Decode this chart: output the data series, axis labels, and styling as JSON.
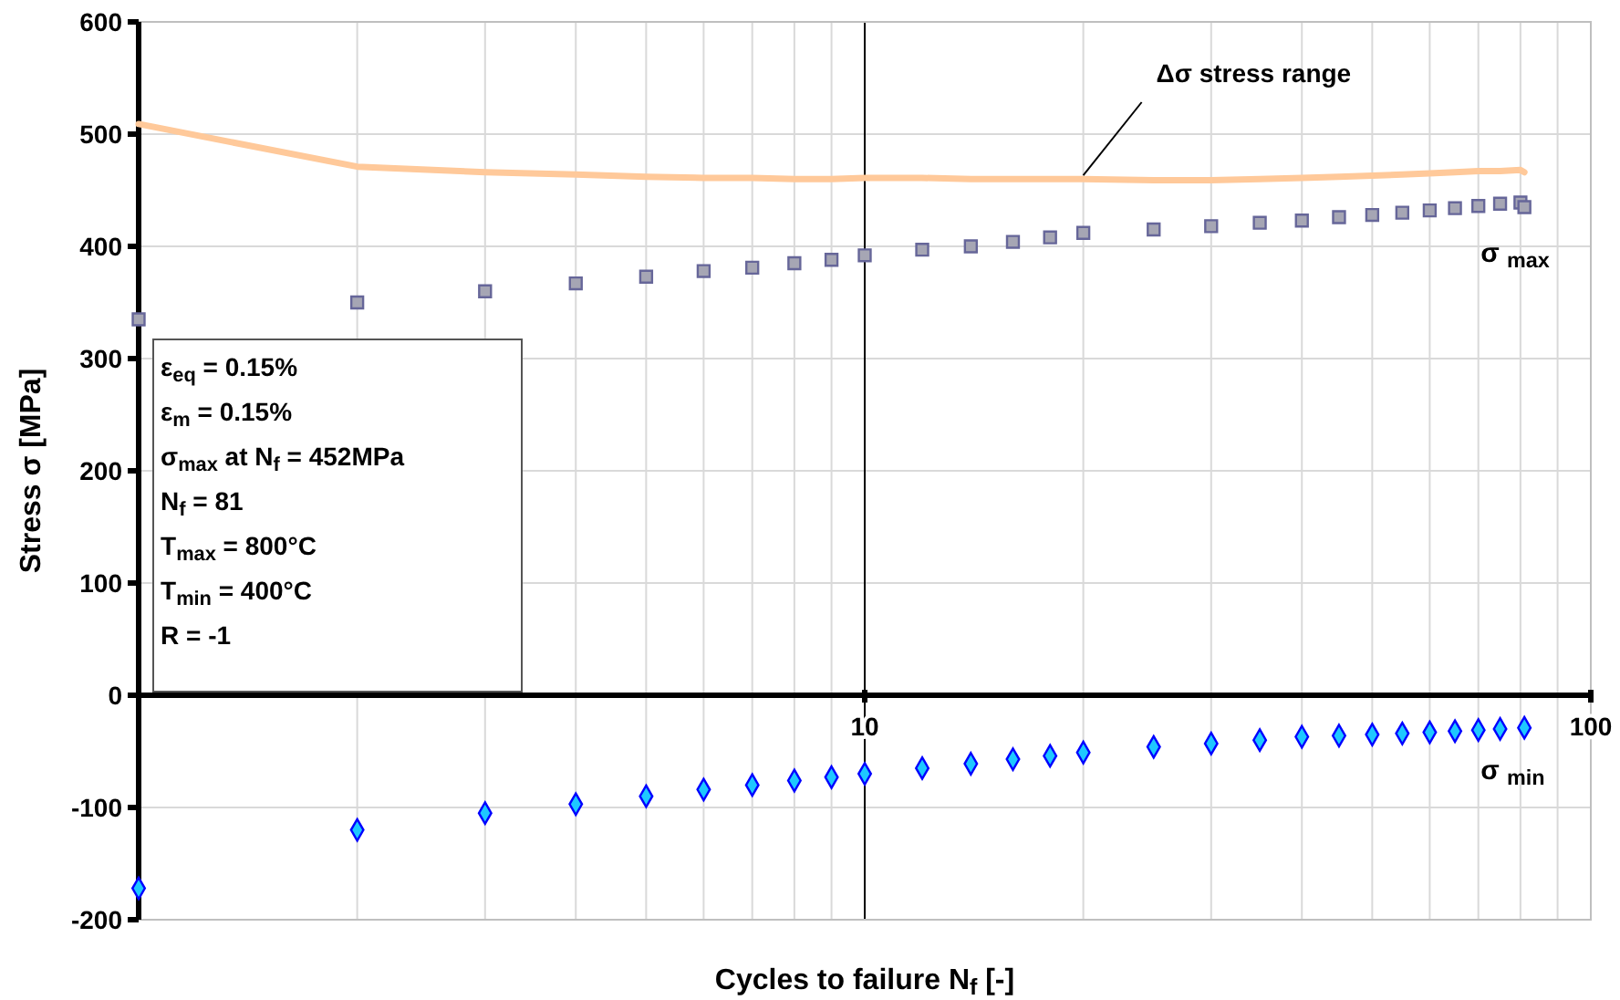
{
  "chart_data": {
    "type": "scatter",
    "xlabel": "Cycles to failure N$_{f}$ [-]",
    "ylabel": "Stress σ [MPa]",
    "log": "x",
    "grid": true,
    "legend": false,
    "xlim": [
      1,
      100
    ],
    "xticks": [
      10,
      100
    ],
    "ref_lines": [
      {
        "axis": "x",
        "value": 10,
        "color": "#000000"
      }
    ],
    "ylim": [
      -200,
      600
    ],
    "yticks": [
      -200,
      -100,
      0,
      100,
      200,
      300,
      400,
      500,
      600
    ],
    "x": [
      1,
      2,
      3,
      4,
      5,
      6,
      7,
      8,
      9,
      10,
      12,
      14,
      16,
      18,
      20,
      25,
      30,
      35,
      40,
      45,
      50,
      55,
      60,
      65,
      70,
      75,
      80,
      81
    ],
    "series": [
      {
        "name": "Δσ stress range",
        "type": "line",
        "color": "#ffc99a",
        "values": [
          509,
          471,
          466,
          464,
          462,
          461,
          461,
          460,
          460,
          461,
          461,
          460,
          460,
          460,
          460,
          459,
          459,
          460,
          461,
          462,
          463,
          464,
          465,
          466,
          467,
          467,
          468,
          466
        ]
      },
      {
        "name": "σ $_{max}$",
        "marker": "square",
        "color": "#a6a6b4",
        "values": [
          335,
          350,
          360,
          367,
          373,
          378,
          381,
          385,
          388,
          392,
          397,
          400,
          404,
          408,
          412,
          415,
          418,
          421,
          423,
          426,
          428,
          430,
          432,
          434,
          436,
          438,
          439,
          435
        ]
      },
      {
        "name": "σ $_{min}$",
        "marker": "diamond",
        "color": "#1ec8ff",
        "x": [
          1,
          2,
          3,
          4,
          5,
          6,
          7,
          8,
          9,
          10,
          12,
          14,
          16,
          18,
          20,
          25,
          30,
          35,
          40,
          45,
          50,
          55,
          60,
          65,
          70,
          75,
          81
        ],
        "values": [
          -172,
          -120,
          -105,
          -97,
          -90,
          -84,
          -80,
          -76,
          -73,
          -70,
          -65,
          -61,
          -57,
          -54,
          -51,
          -46,
          -43,
          -40,
          -37,
          -36,
          -35,
          -34,
          -33,
          -32,
          -31,
          -30,
          -29
        ]
      }
    ],
    "annotations": [
      "ε$_{eq}$ = 0.15%",
      "ε$_{m}$ = 0.15%",
      "σ$_{max}$ at N$_{f}$ = 452MPa",
      "N$_{f}$ = 81",
      "T$_{max}$ = 800°C",
      "T$_{min}$ = 400°C",
      "R = -1"
    ]
  }
}
